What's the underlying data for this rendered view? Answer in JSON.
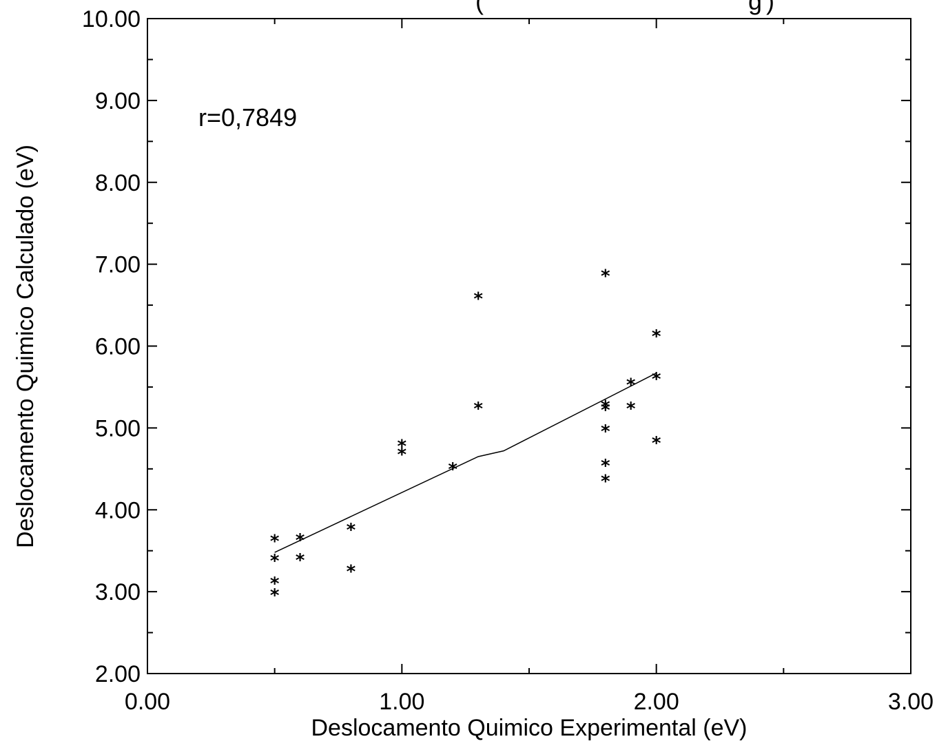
{
  "chart_data": {
    "type": "scatter",
    "title": "(",
    "title_right": "g",
    "title_close": ")",
    "xlabel": "Deslocamento Quimico Experimental (eV)",
    "ylabel": "Deslocamento Quimico Calculado (eV)",
    "xlim": [
      0,
      3
    ],
    "ylim": [
      2,
      10
    ],
    "x_ticks": [
      "0.00",
      "1.00",
      "2.00",
      "3.00"
    ],
    "y_ticks": [
      "2.00",
      "3.00",
      "4.00",
      "5.00",
      "6.00",
      "7.00",
      "8.00",
      "9.00",
      "10.00"
    ],
    "annotation": "r=0,7849",
    "grid": false,
    "marker": "*",
    "points": [
      {
        "x": 0.5,
        "y": 3.62
      },
      {
        "x": 0.5,
        "y": 3.38
      },
      {
        "x": 0.5,
        "y": 3.1
      },
      {
        "x": 0.5,
        "y": 2.96
      },
      {
        "x": 0.6,
        "y": 3.63
      },
      {
        "x": 0.6,
        "y": 3.39
      },
      {
        "x": 0.8,
        "y": 3.76
      },
      {
        "x": 0.8,
        "y": 3.25
      },
      {
        "x": 1.0,
        "y": 4.78
      },
      {
        "x": 1.0,
        "y": 4.68
      },
      {
        "x": 1.2,
        "y": 4.5
      },
      {
        "x": 1.3,
        "y": 6.58
      },
      {
        "x": 1.3,
        "y": 5.24
      },
      {
        "x": 1.8,
        "y": 6.86
      },
      {
        "x": 1.8,
        "y": 5.26
      },
      {
        "x": 1.8,
        "y": 5.22
      },
      {
        "x": 1.8,
        "y": 4.96
      },
      {
        "x": 1.8,
        "y": 4.54
      },
      {
        "x": 1.8,
        "y": 4.35
      },
      {
        "x": 1.9,
        "y": 5.53
      },
      {
        "x": 1.9,
        "y": 5.24
      },
      {
        "x": 2.0,
        "y": 6.12
      },
      {
        "x": 2.0,
        "y": 5.6
      },
      {
        "x": 2.0,
        "y": 4.82
      }
    ],
    "fit_line": {
      "x": [
        0.5,
        1.3,
        1.4,
        2.0
      ],
      "y": [
        3.48,
        4.65,
        4.72,
        5.67
      ]
    }
  }
}
